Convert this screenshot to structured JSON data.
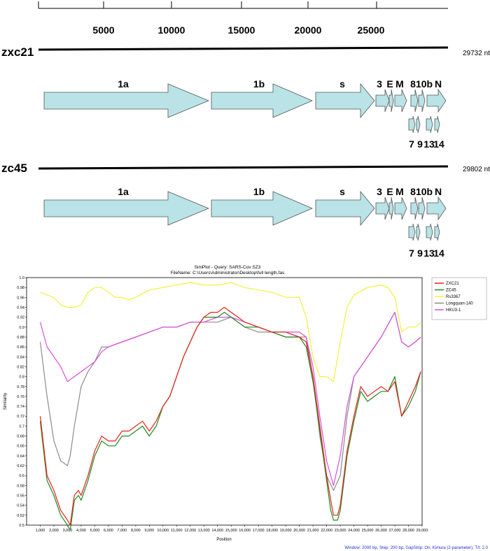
{
  "scale": {
    "ticks": [
      "5000",
      "10000",
      "15000",
      "20000",
      "25000"
    ]
  },
  "genomes": [
    {
      "name": "zxc21",
      "length": "29732 nt",
      "genes_top": [
        "1a",
        "1b",
        "s",
        "3",
        "E",
        "M",
        "8",
        "10b",
        "N"
      ],
      "genes_bottom": [
        "7",
        "9",
        "13",
        "14"
      ]
    },
    {
      "name": "zc45",
      "length": "29802 nt",
      "genes_top": [
        "1a",
        "1b",
        "s",
        "3",
        "E",
        "M",
        "8",
        "10b",
        "N"
      ],
      "genes_bottom": [
        "7",
        "9",
        "13",
        "14"
      ]
    }
  ],
  "colors": {
    "gene_fill": "#b9e3e6",
    "ZXC21": "#e8211c",
    "ZC45": "#1f8a1f",
    "Rs3367": "#f2f238",
    "Longquan-140": "#8c8c8c",
    "HKU3-1": "#d94fd9"
  },
  "chart_data": {
    "type": "line",
    "title": "SimPlot - Query: SARS-Cov SZ3",
    "subtitle": "FileName: C:\\Users\\Administrator\\Desktop\\full length.fas",
    "xlabel": "Position",
    "ylabel": "Similarity",
    "footer": "Window: 2000 bp, Step: 200 bp, GapStrip: On, Kimura (2-parameter), T/t: 2.0",
    "xlim": [
      0,
      29000
    ],
    "ylim": [
      0.5,
      1.0
    ],
    "x_ticks": [
      "1,000",
      "2,000",
      "3,000",
      "4,000",
      "5,000",
      "6,000",
      "7,000",
      "8,000",
      "9,000",
      "10,000",
      "11,000",
      "12,000",
      "13,000",
      "14,000",
      "15,000",
      "16,000",
      "17,000",
      "18,000",
      "19,000",
      "20,000",
      "21,000",
      "22,000",
      "23,000",
      "24,000",
      "25,000",
      "26,000",
      "27,000",
      "28,000",
      "29,000"
    ],
    "y_ticks": [
      "0.5",
      "0.52",
      "0.54",
      "0.56",
      "0.58",
      "0.6",
      "0.62",
      "0.64",
      "0.66",
      "0.68",
      "0.7",
      "0.72",
      "0.74",
      "0.76",
      "0.78",
      "0.8",
      "0.82",
      "0.84",
      "0.86",
      "0.88",
      "0.9",
      "0.92",
      "0.94",
      "0.96",
      "0.98",
      "1.0"
    ],
    "legend_position": "right",
    "series": [
      {
        "name": "ZXC21",
        "x": [
          1000,
          1500,
          2000,
          2500,
          3000,
          3200,
          3500,
          3800,
          4000,
          4500,
          5000,
          5500,
          6000,
          6500,
          7000,
          7500,
          8000,
          8500,
          9000,
          9500,
          10000,
          10500,
          11000,
          11500,
          12000,
          12500,
          13000,
          13500,
          14000,
          14500,
          15000,
          15500,
          16000,
          17000,
          18000,
          19000,
          20000,
          20500,
          21000,
          21500,
          22000,
          22300,
          22500,
          22800,
          23000,
          23500,
          24000,
          24500,
          25000,
          25500,
          26000,
          26500,
          27000,
          27500,
          28000,
          28500,
          28900
        ],
        "y": [
          0.72,
          0.6,
          0.57,
          0.53,
          0.51,
          0.5,
          0.56,
          0.57,
          0.56,
          0.6,
          0.65,
          0.68,
          0.67,
          0.67,
          0.69,
          0.69,
          0.7,
          0.71,
          0.69,
          0.71,
          0.74,
          0.76,
          0.8,
          0.84,
          0.87,
          0.9,
          0.92,
          0.93,
          0.93,
          0.94,
          0.93,
          0.92,
          0.91,
          0.9,
          0.89,
          0.89,
          0.88,
          0.87,
          0.8,
          0.7,
          0.6,
          0.55,
          0.52,
          0.52,
          0.54,
          0.65,
          0.72,
          0.78,
          0.76,
          0.77,
          0.78,
          0.77,
          0.79,
          0.72,
          0.75,
          0.78,
          0.81
        ]
      },
      {
        "name": "ZC45",
        "x": [
          1000,
          1500,
          2000,
          2500,
          3000,
          3200,
          3500,
          3800,
          4000,
          4500,
          5000,
          5500,
          6000,
          6500,
          7000,
          7500,
          8000,
          8500,
          9000,
          9500,
          10000,
          10500,
          11000,
          11500,
          12000,
          12500,
          13000,
          13500,
          14000,
          14500,
          15000,
          15500,
          16000,
          17000,
          18000,
          19000,
          20000,
          20500,
          21000,
          21500,
          22000,
          22300,
          22500,
          22800,
          23000,
          23500,
          24000,
          24500,
          25000,
          25500,
          26000,
          26500,
          27000,
          27500,
          28000,
          28500,
          28900
        ],
        "y": [
          0.71,
          0.59,
          0.56,
          0.52,
          0.5,
          0.49,
          0.55,
          0.56,
          0.55,
          0.59,
          0.64,
          0.67,
          0.66,
          0.66,
          0.68,
          0.68,
          0.69,
          0.7,
          0.68,
          0.7,
          0.74,
          0.76,
          0.8,
          0.84,
          0.87,
          0.9,
          0.92,
          0.92,
          0.92,
          0.93,
          0.92,
          0.91,
          0.9,
          0.9,
          0.89,
          0.88,
          0.88,
          0.86,
          0.79,
          0.69,
          0.59,
          0.53,
          0.51,
          0.51,
          0.53,
          0.64,
          0.71,
          0.77,
          0.75,
          0.76,
          0.77,
          0.77,
          0.8,
          0.72,
          0.74,
          0.77,
          0.81
        ]
      },
      {
        "name": "Rs3367",
        "x": [
          1000,
          1500,
          2000,
          2500,
          3000,
          3500,
          4000,
          4500,
          5000,
          5500,
          6000,
          6500,
          7000,
          7500,
          8000,
          9000,
          10000,
          11000,
          12000,
          13000,
          14000,
          15000,
          16000,
          17000,
          18000,
          19000,
          20000,
          20500,
          21000,
          21500,
          22000,
          22500,
          23000,
          23500,
          24000,
          25000,
          26000,
          26500,
          27000,
          27500,
          28000,
          28500,
          28900
        ],
        "y": [
          0.97,
          0.965,
          0.96,
          0.945,
          0.94,
          0.94,
          0.945,
          0.97,
          0.98,
          0.98,
          0.97,
          0.96,
          0.96,
          0.955,
          0.96,
          0.975,
          0.98,
          0.985,
          0.99,
          0.985,
          0.985,
          0.99,
          0.98,
          0.975,
          0.97,
          0.96,
          0.96,
          0.92,
          0.84,
          0.8,
          0.8,
          0.79,
          0.87,
          0.94,
          0.965,
          0.98,
          0.985,
          0.98,
          0.96,
          0.89,
          0.9,
          0.9,
          0.91
        ]
      },
      {
        "name": "Longquan-140",
        "x": [
          1000,
          1500,
          2000,
          2500,
          3000,
          3200,
          3500,
          4000,
          4500,
          5000,
          5500,
          6000,
          7000,
          8000,
          9000,
          10000,
          11000,
          12000,
          13000,
          14000,
          15000,
          16000,
          17000,
          18000,
          19000,
          20000,
          20500,
          21000,
          21500,
          22000,
          22500,
          23000,
          23500,
          24000,
          25000,
          26000,
          27000,
          27500,
          28000,
          28500,
          28900
        ],
        "y": [
          0.87,
          0.76,
          0.67,
          0.63,
          0.62,
          0.64,
          0.7,
          0.78,
          0.81,
          0.83,
          0.86,
          0.86,
          0.87,
          0.88,
          0.89,
          0.9,
          0.9,
          0.91,
          0.91,
          0.91,
          0.92,
          0.9,
          0.89,
          0.89,
          0.88,
          0.88,
          0.88,
          0.8,
          0.68,
          0.6,
          0.57,
          0.6,
          0.72,
          0.8,
          0.84,
          0.88,
          0.93,
          0.87,
          0.86,
          0.87,
          0.88
        ]
      },
      {
        "name": "HKU3-1",
        "x": [
          1000,
          1500,
          2000,
          2500,
          3000,
          3500,
          4000,
          4500,
          5000,
          5500,
          6000,
          7000,
          8000,
          9000,
          10000,
          11000,
          12000,
          13000,
          14000,
          15000,
          16000,
          17000,
          18000,
          19000,
          20000,
          20500,
          21000,
          21500,
          22000,
          22500,
          23000,
          23500,
          24000,
          25000,
          26000,
          27000,
          27500,
          28000,
          28500,
          28900
        ],
        "y": [
          0.91,
          0.86,
          0.84,
          0.82,
          0.79,
          0.8,
          0.81,
          0.82,
          0.83,
          0.85,
          0.86,
          0.87,
          0.88,
          0.89,
          0.9,
          0.9,
          0.91,
          0.91,
          0.92,
          0.92,
          0.91,
          0.9,
          0.89,
          0.89,
          0.89,
          0.88,
          0.82,
          0.72,
          0.63,
          0.58,
          0.64,
          0.74,
          0.8,
          0.84,
          0.88,
          0.93,
          0.87,
          0.86,
          0.87,
          0.88
        ]
      }
    ]
  }
}
